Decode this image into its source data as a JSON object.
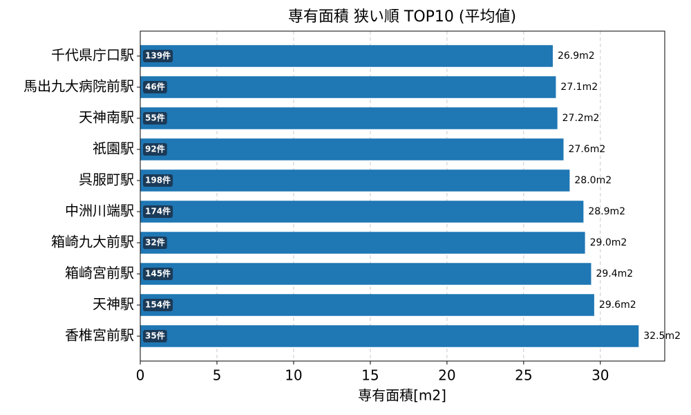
{
  "chart_data": {
    "type": "barh",
    "title": "専有面積 狭い順 TOP10 (平均値)",
    "xlabel": "専有面積[m2]",
    "categories": [
      "千代県庁口駅",
      "馬出九大病院前駅",
      "天神南駅",
      "祇園駅",
      "呉服町駅",
      "中洲川端駅",
      "箱崎九大前駅",
      "箱崎宮前駅",
      "天神駅",
      "香椎宮前駅"
    ],
    "values": [
      26.9,
      27.1,
      27.2,
      27.6,
      28.0,
      28.9,
      29.0,
      29.4,
      29.6,
      32.5
    ],
    "value_labels": [
      "26.9m2",
      "27.1m2",
      "27.2m2",
      "27.6m2",
      "28.0m2",
      "28.9m2",
      "29.0m2",
      "29.4m2",
      "29.6m2",
      "32.5m2"
    ],
    "count_labels": [
      "139件",
      "46件",
      "55件",
      "92件",
      "198件",
      "174件",
      "32件",
      "145件",
      "154件",
      "35件"
    ],
    "color": "#1f77b4",
    "label_box_color": "#1b3a57",
    "xlim": [
      0,
      34.2
    ],
    "xticks": [
      0,
      5,
      10,
      15,
      20,
      25,
      30
    ],
    "grid": true
  }
}
